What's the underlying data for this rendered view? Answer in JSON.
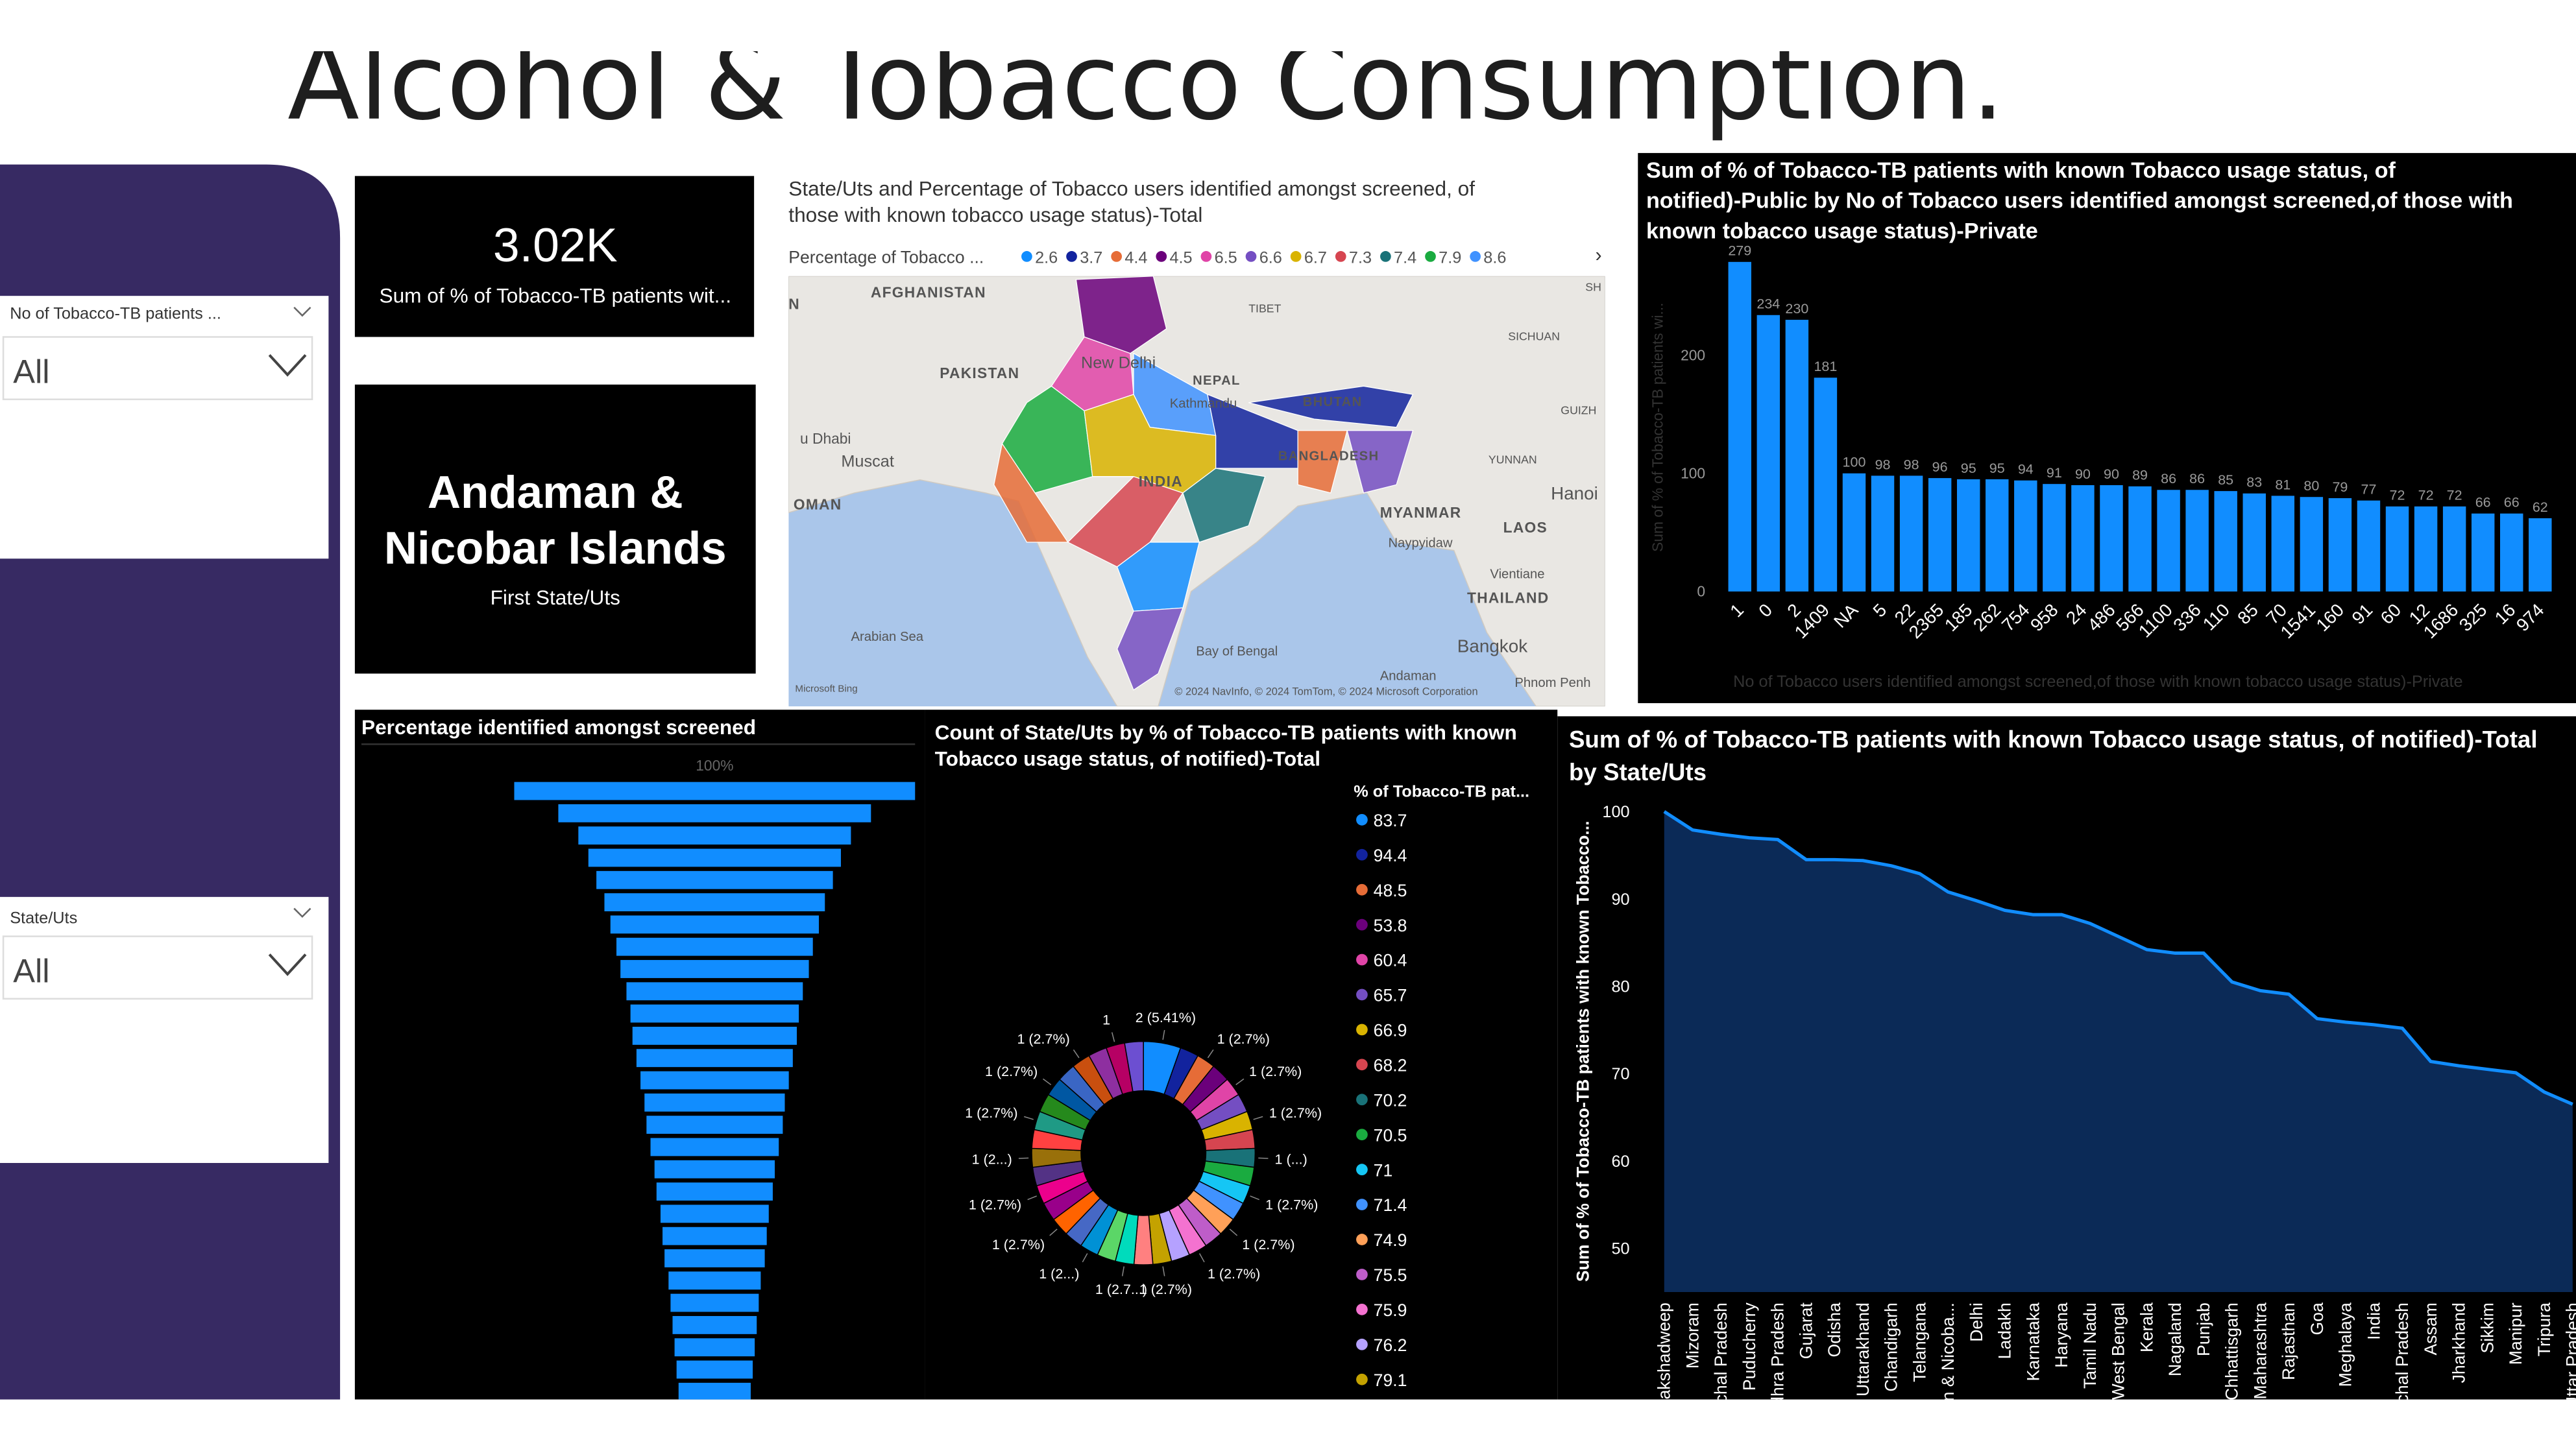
{
  "page": {
    "title": "Alcohol & Tobacco Consumption.",
    "slicers": [
      {
        "label": "No of Tobacco-TB patients ...",
        "value": "All"
      },
      {
        "label": "State/Uts",
        "value": "All"
      }
    ],
    "cards": [
      {
        "value": [
          "3.02K"
        ],
        "label": "Sum of % of Tobacco-TB patients wit..."
      },
      {
        "value": [
          "Andaman &",
          "Nicobar Islands"
        ],
        "label": "First State/Uts"
      }
    ]
  },
  "chart_data": [
    {
      "type": "map",
      "title": [
        "State/Uts and Percentage of Tobacco users identified amongst screened, of",
        "those with known tobacco usage status)-Total"
      ],
      "legend_title": "Percentage  of Tobacco ...",
      "legend_values": [
        2.6,
        3.7,
        4.4,
        4.5,
        6.5,
        6.6,
        6.7,
        7.3,
        7.4,
        7.9,
        8.6
      ],
      "colors": [
        "#118DFF",
        "#12239E",
        "#E66C37",
        "#6B007B",
        "#E044A7",
        "#744EC2",
        "#D9B300",
        "#D64550",
        "#197278",
        "#1AAB40",
        "#4092FF"
      ],
      "labels": [
        "AFGHANISTAN",
        "PAKISTAN",
        "New Delhi",
        "NEPAL",
        "Kathmandu",
        "BHUTAN",
        "BANGLADESH",
        "INDIA",
        "MYANMAR",
        "Naypyidaw",
        "LAOS",
        "Vientiane",
        "THAILAND",
        "Hanoi",
        "Bangkok",
        "Muscat",
        "OMAN",
        "u Dhabi",
        "Arabian Sea",
        "Bay of Bengal",
        "YUNNAN",
        "SICHUAN",
        "TIBET",
        "GUIZH",
        "SH",
        "N",
        "Andaman",
        "Phnom Penh",
        "Microsoft Bing",
        "© 2024 NavInfo, © 2024 TomTom, © 2024 Microsoft Corporation"
      ]
    },
    {
      "type": "bar",
      "title": [
        "Sum of % of Tobacco-TB patients with known Tobacco usage status, of",
        "notified)-Public by No of Tobacco users identified amongst screened,of those with",
        "known tobacco usage status)-Private"
      ],
      "x_label": "No of Tobacco users identified amongst screened,of those with known tobacco usage status)-Private",
      "y_label": "Sum of % of Tobacco-TB patients wi...",
      "categories": [
        "1",
        "0",
        "2",
        "1409",
        "NA",
        "5",
        "22",
        "2365",
        "185",
        "262",
        "754",
        "958",
        "24",
        "486",
        "566",
        "1100",
        "336",
        "110",
        "85",
        "70",
        "1541",
        "160",
        "91",
        "60",
        "12",
        "1686",
        "325",
        "16",
        "974"
      ],
      "values": [
        279,
        234,
        230,
        181,
        100,
        98,
        98,
        96,
        95,
        95,
        94,
        91,
        90,
        90,
        89,
        86,
        86,
        85,
        83,
        81,
        80,
        79,
        77,
        72,
        72,
        72,
        66,
        66,
        62
      ],
      "color": "#118DFF",
      "ylim": [
        0,
        285
      ],
      "yticks": [
        0,
        100,
        200
      ],
      "grid": false
    },
    {
      "type": "funnel",
      "title": "Percentage identified amongst screened",
      "values": [
        100,
        78,
        68,
        63,
        59,
        55,
        52,
        49,
        47,
        44,
        42,
        41,
        39,
        37,
        35,
        34,
        32,
        30,
        29,
        27,
        26,
        25,
        23,
        22,
        21,
        20,
        19,
        18
      ],
      "value_labels": [
        "100%",
        null,
        null,
        null,
        null,
        null,
        null,
        null,
        null,
        null,
        null,
        null,
        null,
        null,
        null,
        null,
        null,
        null,
        null,
        null,
        null,
        null,
        null,
        null,
        null,
        null,
        null,
        null
      ],
      "color": "#118DFF"
    },
    {
      "type": "donut",
      "title": [
        "Count of State/Uts by % of Tobacco-TB patients with known",
        "Tobacco usage status, of notified)-Total"
      ],
      "legend_title": "% of Tobacco-TB pat...",
      "categories": [
        "83.7",
        "94.4",
        "48.5",
        "53.8",
        "60.4",
        "65.7",
        "66.9",
        "68.2",
        "70.2",
        "70.5",
        "71",
        "71.4",
        "74.9",
        "75.5",
        "75.9",
        "76.2",
        "79.1",
        null,
        null,
        null,
        null,
        null,
        null,
        null,
        null,
        null,
        null,
        null,
        null,
        null,
        null,
        null,
        null,
        null,
        null,
        null
      ],
      "values": [
        2,
        1,
        1,
        1,
        1,
        1,
        1,
        1,
        1,
        1,
        1,
        1,
        1,
        1,
        1,
        1,
        1,
        1,
        1,
        1,
        1,
        1,
        1,
        1,
        1,
        1,
        1,
        1,
        1,
        1,
        1,
        1,
        1,
        1,
        1,
        1
      ],
      "value_labels": [
        "2 (5.41%)",
        null,
        "1 (2.7%)",
        null,
        "1 (2.7%)",
        null,
        "1 (2.7%)",
        null,
        "1 (...)",
        null,
        "1 (2.7%)",
        null,
        "1 (2.7%)",
        null,
        "1 (2.7%)",
        null,
        "1 (2.7%)",
        null,
        "1 (2.7...)",
        null,
        "1 (2...)",
        null,
        "1 (2.7%)",
        null,
        "1 (2.7%)",
        null,
        "1 (2...)",
        null,
        "1 (2.7%)",
        null,
        "1 (2.7%)",
        null,
        "1 (2.7%)",
        null,
        "1",
        null
      ],
      "colors": [
        "#118DFF",
        "#12239E",
        "#E66C37",
        "#6B007B",
        "#E044A7",
        "#744EC2",
        "#D9B300",
        "#D64550",
        "#197278",
        "#1AAB40",
        "#15C6F4",
        "#4092FF",
        "#FFA058",
        "#BE5DC9",
        "#F472D0",
        "#B5A1FF",
        "#C4A200",
        "#FF8080",
        "#00DBBC",
        "#5BD667",
        "#0091D5",
        "#4668C5",
        "#FF6300",
        "#99008A",
        "#EC008C",
        "#533285",
        "#99700A",
        "#FF4141",
        "#1F9A85",
        "#25891C",
        "#0057A2",
        "#3A66C4",
        "#C94F0F",
        "#8E2FA0",
        "#B60064",
        "#6C4FD1"
      ]
    },
    {
      "type": "area",
      "title": [
        "Sum of % of Tobacco-TB patients with known Tobacco usage status, of notified)-Total",
        "by State/Uts"
      ],
      "y_label": "Sum of % of Tobacco-TB patients with known Tobacco...",
      "categories": [
        "Lakshadweep",
        "Mizoram",
        "Himachal Pradesh",
        "Puducherry",
        "Andhra Pradesh",
        "Gujarat",
        "Odisha",
        "Uttarakhand",
        "Chandigarh",
        "Telangana",
        "Andaman & Nicoba...",
        "Delhi",
        "Ladakh",
        "Karnataka",
        "Haryana",
        "Tamil Nadu",
        "West Bengal",
        "Kerala",
        "Nagaland",
        "Punjab",
        "Chhattisgarh",
        "Maharashtra",
        "Rajasthan",
        "Goa",
        "Meghalaya",
        "India",
        "Arunachal Pradesh",
        "Assam",
        "Jharkhand",
        "Sikkim",
        "Manipur",
        "Tripura",
        "Uttar Pradesh"
      ],
      "values": [
        100,
        97.9,
        97.4,
        97.0,
        96.8,
        94.5,
        94.5,
        94.4,
        93.8,
        92.9,
        90.8,
        89.8,
        88.7,
        88.2,
        88.2,
        87.2,
        85.7,
        84.2,
        83.8,
        83.8,
        80.5,
        79.5,
        79.1,
        76.3,
        75.9,
        75.6,
        75.2,
        71.4,
        70.9,
        70.5,
        70.1,
        67.9,
        66.5
      ],
      "color": "#118DFF",
      "fill": "#0b2a57",
      "ylim": [
        45,
        102
      ],
      "yticks": [
        50,
        60,
        70,
        80,
        90,
        100
      ],
      "grid": false
    }
  ]
}
